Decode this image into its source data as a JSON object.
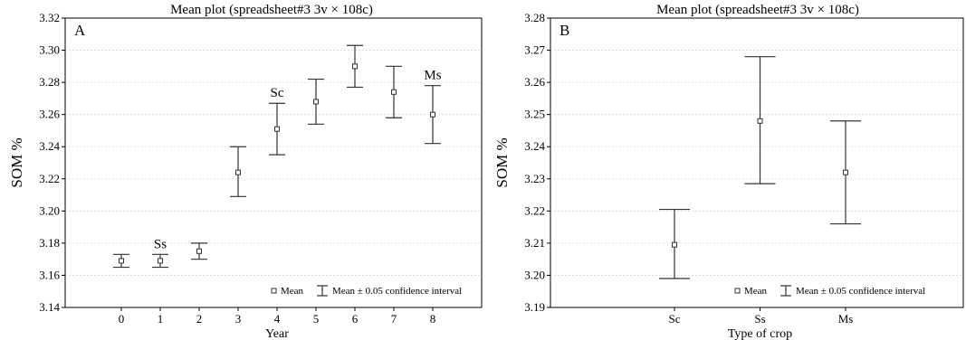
{
  "chart_data": [
    {
      "type": "scatter",
      "panel": "A",
      "title": "Mean plot (spreadsheet#3 3v × 108c)",
      "xlabel": "Year",
      "ylabel": "SOM %",
      "categories": [
        "0",
        "1",
        "2",
        "3",
        "4",
        "5",
        "6",
        "7",
        "8"
      ],
      "ylim": [
        3.14,
        3.32
      ],
      "yticks": [
        "3.14",
        "3.16",
        "3.18",
        "3.20",
        "3.22",
        "3.24",
        "3.26",
        "3.28",
        "3.30",
        "3.32"
      ],
      "grid": true,
      "legend_position": "bottom-right",
      "legend": {
        "mean": "Mean",
        "ci": "Mean ± 0.05 confidence interval"
      },
      "series": [
        {
          "mean": [
            3.169,
            3.169,
            3.175,
            3.224,
            3.251,
            3.268,
            3.29,
            3.274,
            3.26
          ],
          "lower": [
            3.165,
            3.165,
            3.17,
            3.209,
            3.235,
            3.254,
            3.277,
            3.258,
            3.242
          ],
          "upper": [
            3.173,
            3.173,
            3.18,
            3.24,
            3.267,
            3.282,
            3.303,
            3.29,
            3.278
          ]
        }
      ],
      "annotations": [
        {
          "category": "1",
          "text": "Ss"
        },
        {
          "category": "4",
          "text": "Sc"
        },
        {
          "category": "8",
          "text": "Ms"
        }
      ]
    },
    {
      "type": "scatter",
      "panel": "B",
      "title": "Mean plot (spreadsheet#3 3v × 108c)",
      "xlabel": "Type of crop",
      "ylabel": "SOM %",
      "categories": [
        "Sc",
        "Ss",
        "Ms"
      ],
      "ylim": [
        3.19,
        3.28
      ],
      "yticks": [
        "3.19",
        "3.20",
        "3.21",
        "3.22",
        "3.23",
        "3.24",
        "3.25",
        "3.26",
        "3.27",
        "3.28"
      ],
      "grid": true,
      "legend_position": "bottom-right",
      "legend": {
        "mean": "Mean",
        "ci": "Mean ± 0.05 confidence interval"
      },
      "series": [
        {
          "mean": [
            3.2095,
            3.248,
            3.232
          ],
          "lower": [
            3.199,
            3.2285,
            3.216
          ],
          "upper": [
            3.2205,
            3.268,
            3.248
          ]
        }
      ],
      "annotations": []
    }
  ]
}
